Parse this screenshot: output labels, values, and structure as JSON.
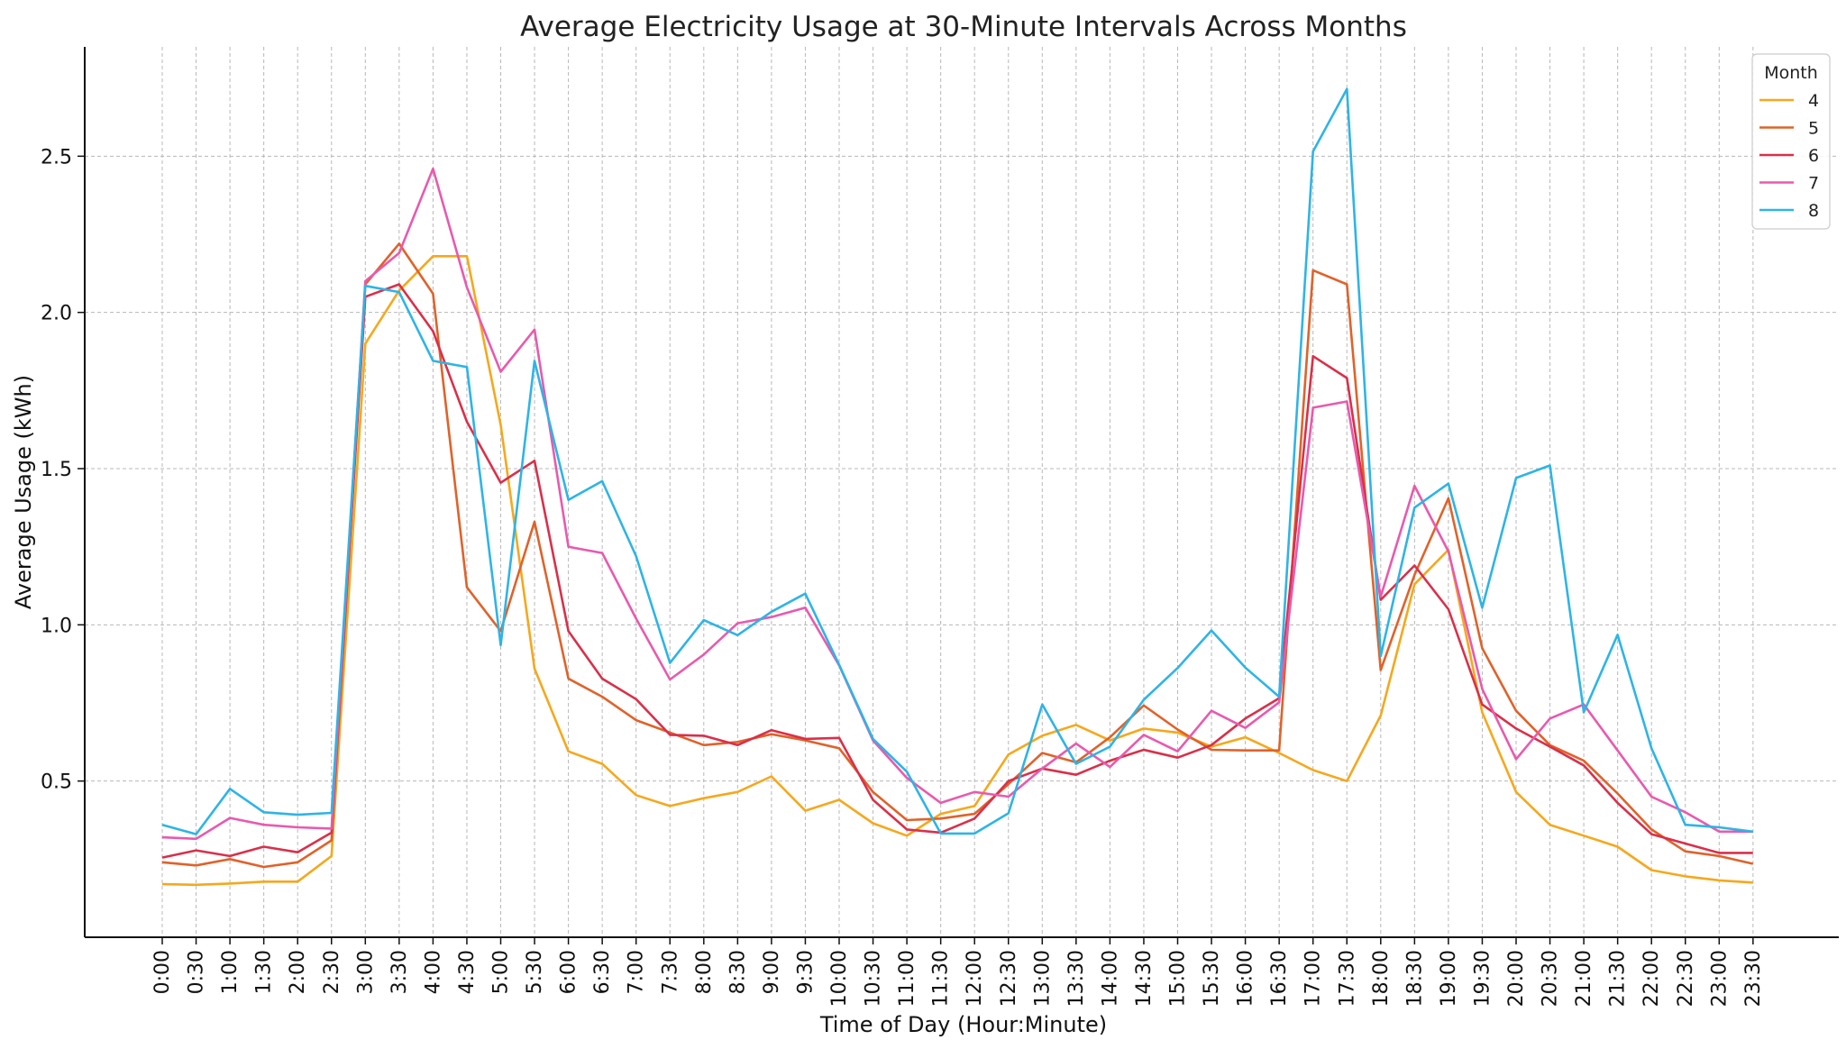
{
  "chart_data": {
    "type": "line",
    "title": "Average Electricity Usage at 30-Minute Intervals Across Months",
    "xlabel": "Time of Day (Hour:Minute)",
    "ylabel": "Average Usage (kWh)",
    "ylim": [
      0.0,
      2.85
    ],
    "yticks": [
      0.5,
      1.0,
      1.5,
      2.0,
      2.5
    ],
    "ytick_labels": [
      "0.5",
      "1.0",
      "1.5",
      "2.0",
      "2.5"
    ],
    "grid": true,
    "legend": {
      "title": "Month",
      "placement": "top-right"
    },
    "x": [
      "0:00",
      "0:30",
      "1:00",
      "1:30",
      "2:00",
      "2:30",
      "3:00",
      "3:30",
      "4:00",
      "4:30",
      "5:00",
      "5:30",
      "6:00",
      "6:30",
      "7:00",
      "7:30",
      "8:00",
      "8:30",
      "9:00",
      "9:30",
      "10:00",
      "10:30",
      "11:00",
      "11:30",
      "12:00",
      "12:30",
      "13:00",
      "13:30",
      "14:00",
      "14:30",
      "15:00",
      "15:30",
      "16:00",
      "16:30",
      "17:00",
      "17:30",
      "18:00",
      "18:30",
      "19:00",
      "19:30",
      "20:00",
      "20:30",
      "21:00",
      "21:30",
      "22:00",
      "22:30",
      "23:00",
      "23:30"
    ],
    "series": [
      {
        "name": "4",
        "color": "#f5a81c",
        "values": [
          0.17,
          0.168,
          0.172,
          0.178,
          0.178,
          0.26,
          1.9,
          2.07,
          2.18,
          2.18,
          1.64,
          0.86,
          0.595,
          0.555,
          0.455,
          0.42,
          0.445,
          0.465,
          0.515,
          0.405,
          0.44,
          0.365,
          0.325,
          0.395,
          0.42,
          0.585,
          0.645,
          0.68,
          0.63,
          0.668,
          0.655,
          0.61,
          0.64,
          0.59,
          0.535,
          0.5,
          0.71,
          1.13,
          1.24,
          0.72,
          0.465,
          0.36,
          0.325,
          0.29,
          0.215,
          0.195,
          0.182,
          0.175
        ]
      },
      {
        "name": "5",
        "color": "#e0622a",
        "values": [
          0.24,
          0.23,
          0.25,
          0.225,
          0.24,
          0.31,
          2.09,
          2.22,
          2.06,
          1.12,
          0.98,
          1.33,
          0.828,
          0.77,
          0.695,
          0.655,
          0.615,
          0.625,
          0.65,
          0.63,
          0.605,
          0.465,
          0.375,
          0.38,
          0.395,
          0.49,
          0.59,
          0.56,
          0.64,
          0.742,
          0.665,
          0.6,
          0.598,
          0.598,
          2.135,
          2.09,
          0.855,
          1.16,
          1.405,
          0.925,
          0.725,
          0.615,
          0.565,
          0.46,
          0.345,
          0.275,
          0.26,
          0.235
        ]
      },
      {
        "name": "6",
        "color": "#d9304a",
        "values": [
          0.255,
          0.278,
          0.26,
          0.29,
          0.272,
          0.335,
          2.05,
          2.09,
          1.94,
          1.65,
          1.455,
          1.525,
          0.98,
          0.828,
          0.762,
          0.648,
          0.645,
          0.615,
          0.663,
          0.635,
          0.638,
          0.44,
          0.345,
          0.335,
          0.38,
          0.5,
          0.54,
          0.52,
          0.565,
          0.6,
          0.575,
          0.615,
          0.7,
          0.765,
          1.86,
          1.79,
          1.08,
          1.19,
          1.05,
          0.745,
          0.668,
          0.61,
          0.55,
          0.43,
          0.33,
          0.3,
          0.27,
          0.27
        ]
      },
      {
        "name": "7",
        "color": "#e85aad",
        "values": [
          0.32,
          0.315,
          0.382,
          0.36,
          0.352,
          0.348,
          2.1,
          2.19,
          2.46,
          2.08,
          1.81,
          1.945,
          1.25,
          1.23,
          1.02,
          0.825,
          0.905,
          1.005,
          1.025,
          1.055,
          0.87,
          0.63,
          0.51,
          0.43,
          0.465,
          0.45,
          0.54,
          0.62,
          0.545,
          0.648,
          0.595,
          0.725,
          0.67,
          0.752,
          1.695,
          1.715,
          1.09,
          1.445,
          1.235,
          0.795,
          0.57,
          0.7,
          0.745,
          0.598,
          0.45,
          0.4,
          0.338,
          0.338
        ]
      },
      {
        "name": "8",
        "color": "#2eb4e6",
        "values": [
          0.36,
          0.33,
          0.475,
          0.4,
          0.392,
          0.398,
          2.085,
          2.065,
          1.845,
          1.825,
          0.935,
          1.845,
          1.4,
          1.46,
          1.22,
          0.878,
          1.015,
          0.967,
          1.042,
          1.1,
          0.872,
          0.635,
          0.53,
          0.332,
          0.332,
          0.397,
          0.745,
          0.555,
          0.61,
          0.76,
          0.862,
          0.982,
          0.863,
          0.77,
          2.515,
          2.715,
          0.9,
          1.375,
          1.452,
          1.055,
          1.47,
          1.51,
          0.72,
          0.968,
          0.605,
          0.36,
          0.352,
          0.338
        ]
      }
    ]
  }
}
